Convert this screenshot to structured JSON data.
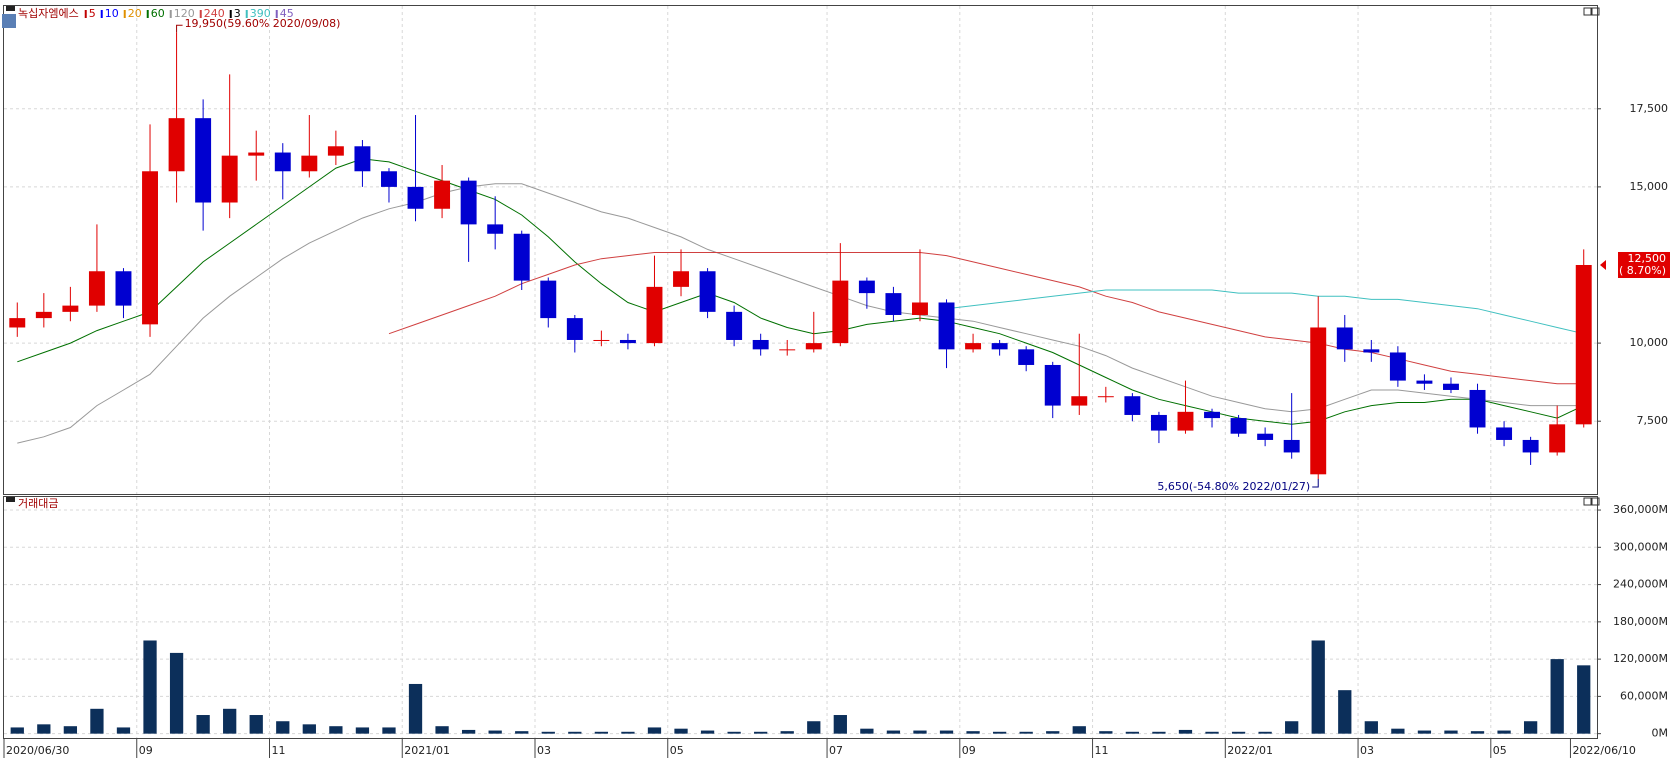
{
  "chart_data": [
    {
      "type": "candlestick",
      "title": "녹십자엠에스",
      "up_color": "#e00000",
      "down_color": "#0000d0",
      "open": [
        10500,
        10800,
        11000,
        11200,
        12300,
        10600,
        15500,
        17200,
        14500,
        16000,
        16100,
        15500,
        16000,
        16300,
        15500,
        15000,
        14300,
        15200,
        13800,
        13500,
        12000,
        10800,
        10100,
        10100,
        10000,
        11800,
        12300,
        11000,
        10100,
        9800,
        9800,
        10000,
        12000,
        11600,
        10900,
        11300,
        9800,
        10000,
        9800,
        9300,
        8000,
        8300,
        8300,
        7700,
        7200,
        7800,
        7600,
        7100,
        6900,
        5800,
        10500,
        9800,
        9700,
        8800,
        8700,
        8500,
        7300,
        6900,
        6500,
        7400
      ],
      "high": [
        11300,
        11600,
        11800,
        13800,
        12400,
        17000,
        19950,
        17800,
        18600,
        16800,
        16400,
        17300,
        16800,
        16500,
        15600,
        17300,
        15700,
        15300,
        14700,
        13600,
        12100,
        10900,
        10400,
        10300,
        12800,
        13000,
        12400,
        11200,
        10300,
        10100,
        11000,
        13200,
        12100,
        11800,
        13000,
        11400,
        10300,
        10100,
        9900,
        9400,
        10300,
        8600,
        8400,
        7800,
        8800,
        7900,
        7700,
        7300,
        8400,
        11500,
        10900,
        10100,
        9900,
        9000,
        8900,
        8700,
        7500,
        7000,
        8000,
        13000
      ],
      "low": [
        10200,
        10500,
        10700,
        11000,
        10800,
        10200,
        14500,
        13600,
        14000,
        15200,
        14600,
        15300,
        15700,
        15000,
        14500,
        13900,
        14000,
        12600,
        13000,
        11700,
        10500,
        9700,
        9900,
        9800,
        9900,
        11500,
        10800,
        9900,
        9600,
        9600,
        9700,
        9900,
        11100,
        10700,
        10700,
        9200,
        9700,
        9600,
        9100,
        7600,
        7700,
        8100,
        7500,
        6800,
        7100,
        7300,
        7000,
        6700,
        6300,
        5650,
        9400,
        9400,
        8600,
        8500,
        8400,
        7100,
        6700,
        6100,
        6400,
        7300
      ],
      "close": [
        10800,
        11000,
        11200,
        12300,
        11200,
        15500,
        17200,
        14500,
        16000,
        16100,
        15500,
        16000,
        16300,
        15500,
        15000,
        14300,
        15200,
        13800,
        13500,
        12000,
        10800,
        10100,
        10100,
        10000,
        11800,
        12300,
        11000,
        10100,
        9800,
        9800,
        10000,
        12000,
        11600,
        10900,
        11300,
        9800,
        10000,
        9800,
        9300,
        8000,
        8300,
        8300,
        7700,
        7200,
        7800,
        7600,
        7100,
        6900,
        6500,
        10500,
        9800,
        9700,
        8800,
        8700,
        8500,
        7300,
        6900,
        6500,
        7400,
        12500
      ],
      "series": [
        {
          "name": "5",
          "color": "#c00000"
        },
        {
          "name": "10",
          "color": "#0000ff"
        },
        {
          "name": "20",
          "color": "#e09000"
        },
        {
          "name": "60",
          "color": "#007000",
          "values": [
            9400,
            9700,
            10000,
            10400,
            10700,
            11000,
            11800,
            12600,
            13200,
            13800,
            14400,
            15000,
            15600,
            15900,
            15800,
            15500,
            15200,
            14900,
            14600,
            14100,
            13400,
            12600,
            11900,
            11300,
            11000,
            11300,
            11600,
            11300,
            10800,
            10500,
            10300,
            10400,
            10600,
            10700,
            10800,
            10700,
            10500,
            10300,
            10000,
            9700,
            9300,
            8900,
            8500,
            8200,
            8000,
            7800,
            7600,
            7500,
            7400,
            7500,
            7800,
            8000,
            8100,
            8100,
            8200,
            8200,
            8000,
            7800,
            7600,
            8000
          ]
        },
        {
          "name": "120",
          "color": "#999999",
          "values": [
            6800,
            7000,
            7300,
            8000,
            8500,
            9000,
            9900,
            10800,
            11500,
            12100,
            12700,
            13200,
            13600,
            14000,
            14300,
            14500,
            14800,
            15000,
            15100,
            15100,
            14800,
            14500,
            14200,
            14000,
            13700,
            13400,
            13000,
            12700,
            12400,
            12100,
            11800,
            11500,
            11200,
            11000,
            10900,
            10800,
            10700,
            10500,
            10300,
            10100,
            9900,
            9600,
            9200,
            8900,
            8600,
            8300,
            8100,
            7900,
            7800,
            7900,
            8200,
            8500,
            8500,
            8400,
            8300,
            8200,
            8100,
            8000,
            8000,
            8000
          ]
        },
        {
          "name": "240",
          "color": "#d04040",
          "values": [
            null,
            null,
            null,
            null,
            null,
            null,
            null,
            null,
            null,
            null,
            null,
            null,
            null,
            null,
            10300,
            10600,
            10900,
            11200,
            11500,
            11900,
            12200,
            12500,
            12700,
            12800,
            12900,
            12900,
            12900,
            12900,
            12900,
            12900,
            12900,
            12900,
            12900,
            12900,
            12900,
            12800,
            12600,
            12400,
            12200,
            12000,
            11800,
            11500,
            11300,
            11000,
            10800,
            10600,
            10400,
            10200,
            10100,
            10000,
            9800,
            9700,
            9500,
            9300,
            9100,
            9000,
            8900,
            8800,
            8700,
            8700
          ]
        },
        {
          "name": "3",
          "color": "#000000"
        },
        {
          "name": "390",
          "color": "#40c0c0",
          "values": [
            null,
            null,
            null,
            null,
            null,
            null,
            null,
            null,
            null,
            null,
            null,
            null,
            null,
            null,
            null,
            null,
            null,
            null,
            null,
            null,
            null,
            null,
            null,
            null,
            null,
            null,
            null,
            null,
            null,
            null,
            null,
            null,
            null,
            null,
            null,
            11100,
            11200,
            11300,
            11400,
            11500,
            11600,
            11700,
            11700,
            11700,
            11700,
            11700,
            11600,
            11600,
            11600,
            11500,
            11500,
            11400,
            11400,
            11300,
            11200,
            11100,
            10900,
            10700,
            10500,
            10300
          ]
        },
        {
          "name": "45",
          "color": "#8060c0"
        }
      ],
      "ylim": [
        5170,
        20790
      ],
      "yticks": [
        {
          "value": 7500,
          "label": "7,500"
        },
        {
          "value": 10000,
          "label": "10,000"
        },
        {
          "value": 15000,
          "label": "15,000"
        },
        {
          "value": 17500,
          "label": "17,500"
        }
      ],
      "grid": true,
      "high_label": "19,950(59.60% 2020/09/08)",
      "low_label": "5,650(-54.80% 2022/01/27)",
      "last_price": 12500,
      "last_price_label": "12,500",
      "last_change_label": "( 8.70%)"
    },
    {
      "type": "bar",
      "title": "거래대금",
      "color": "#0c2f5a",
      "categories": [
        "2020/06/30",
        null,
        null,
        null,
        null,
        "09",
        null,
        null,
        null,
        null,
        "11",
        null,
        null,
        null,
        null,
        "2021/01",
        null,
        null,
        null,
        null,
        "03",
        null,
        null,
        null,
        null,
        "05",
        null,
        null,
        null,
        null,
        null,
        "07",
        null,
        null,
        null,
        null,
        "09",
        null,
        null,
        null,
        null,
        "11",
        null,
        null,
        null,
        null,
        "2022/01",
        null,
        null,
        null,
        null,
        "03",
        null,
        null,
        null,
        null,
        "05",
        null,
        null,
        "2022/06/10"
      ],
      "values": [
        10000,
        15000,
        12000,
        40000,
        10000,
        150000,
        130000,
        30000,
        40000,
        30000,
        20000,
        15000,
        12000,
        10000,
        10000,
        80000,
        12000,
        6000,
        5000,
        4000,
        3000,
        3000,
        3000,
        3000,
        10000,
        8000,
        5000,
        3000,
        3000,
        4000,
        20000,
        30000,
        8000,
        5000,
        5000,
        5000,
        4000,
        3000,
        3000,
        4000,
        12000,
        4000,
        3000,
        3000,
        6000,
        3000,
        3000,
        3000,
        20000,
        150000,
        70000,
        20000,
        8000,
        5000,
        5000,
        4000,
        5000,
        20000,
        120000,
        110000
      ],
      "ylim": [
        -7000,
        381000
      ],
      "yticks": [
        {
          "value": 0,
          "label": "0M"
        },
        {
          "value": 60000,
          "label": "60,000M"
        },
        {
          "value": 120000,
          "label": "120,000M"
        },
        {
          "value": 180000,
          "label": "180,000M"
        },
        {
          "value": 240000,
          "label": "240,000M"
        },
        {
          "value": 300000,
          "label": "300,000M"
        },
        {
          "value": 360000,
          "label": "360,000M"
        }
      ],
      "grid": true
    }
  ]
}
